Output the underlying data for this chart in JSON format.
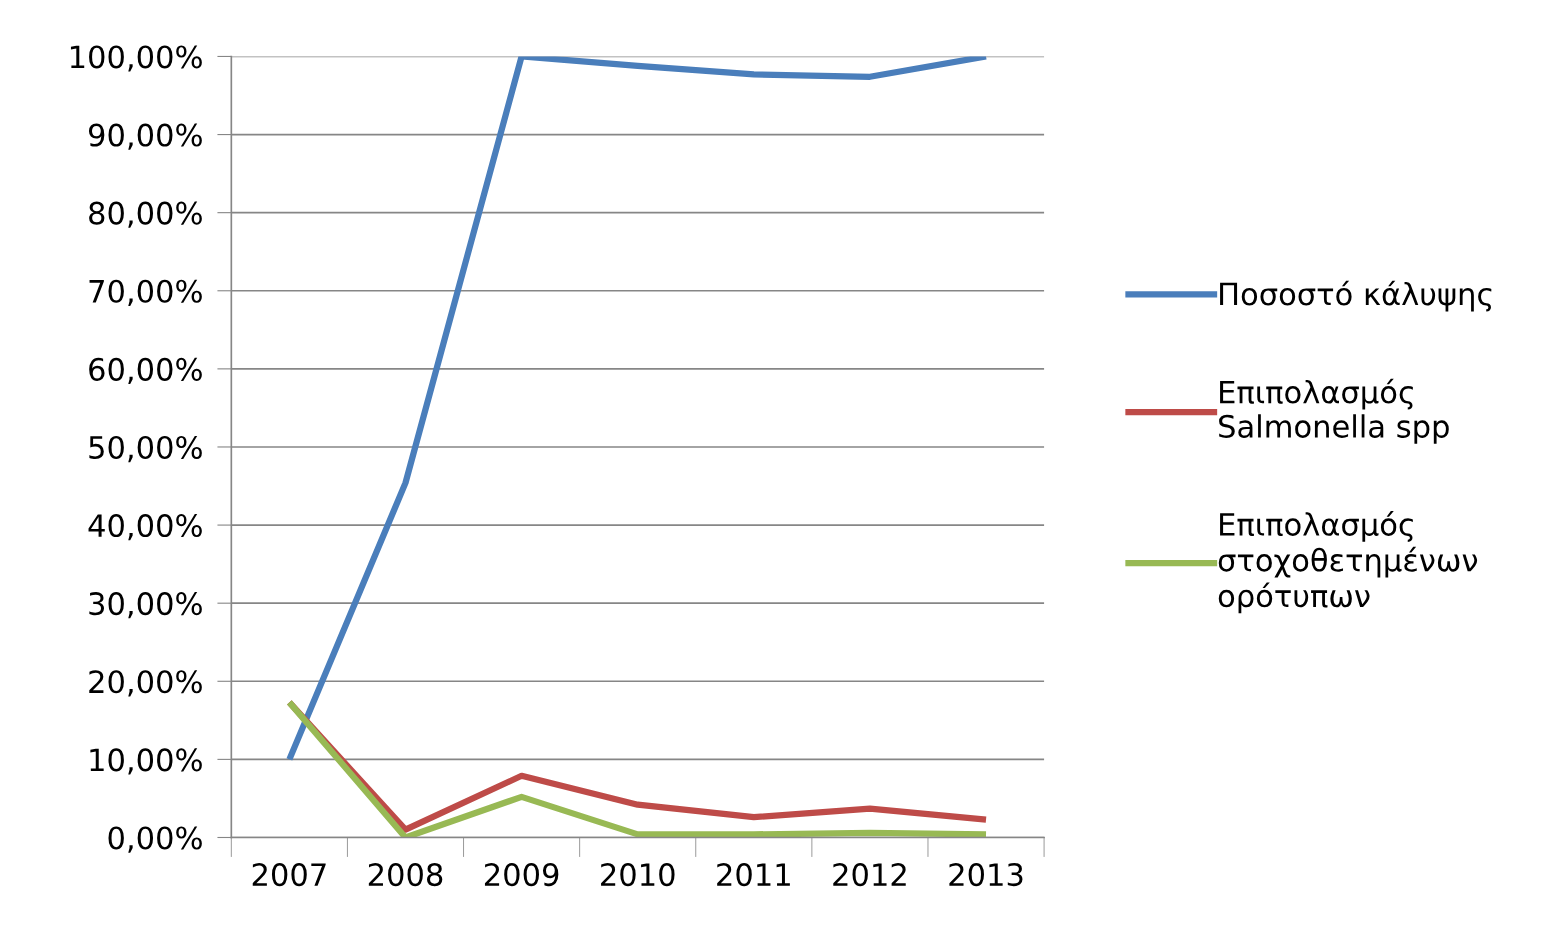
{
  "chart_data": {
    "type": "line",
    "categories": [
      "2007",
      "2008",
      "2009",
      "2010",
      "2011",
      "2012",
      "2013"
    ],
    "series": [
      {
        "name": "Ποσοστό κάλυψης",
        "color": "#4a7ebb",
        "values": [
          10,
          45.4,
          100,
          98.8,
          97.7,
          97.4,
          100
        ]
      },
      {
        "name": "Επιπολασμός Salmonella spp",
        "color": "#be4b48",
        "values": [
          17.3,
          1.0,
          7.9,
          4.2,
          2.6,
          3.7,
          2.3
        ]
      },
      {
        "name": "Επιπολασμός στοχοθετημένων ορότυπων",
        "color": "#98b954",
        "values": [
          17.3,
          0,
          5.2,
          0.4,
          0.4,
          0.6,
          0.4
        ]
      }
    ],
    "ylim": [
      0,
      100
    ],
    "yticks": [
      {
        "value": 0,
        "label": "0,00%"
      },
      {
        "value": 10,
        "label": "10,00%"
      },
      {
        "value": 20,
        "label": "20,00%"
      },
      {
        "value": 30,
        "label": "30,00%"
      },
      {
        "value": 40,
        "label": "40,00%"
      },
      {
        "value": 50,
        "label": "50,00%"
      },
      {
        "value": 60,
        "label": "60,00%"
      },
      {
        "value": 70,
        "label": "70,00%"
      },
      {
        "value": 80,
        "label": "80,00%"
      },
      {
        "value": 90,
        "label": "90,00%"
      },
      {
        "value": 100,
        "label": "100,00%"
      }
    ],
    "grid": "y",
    "legend": "right",
    "marker": "none",
    "line_style": "solid"
  }
}
